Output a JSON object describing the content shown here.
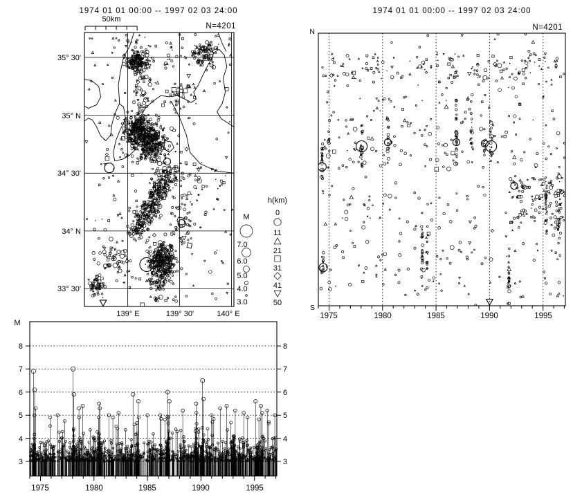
{
  "map_panel": {
    "title": "1974 01 01 00:00 -- 1997 02 03 24:00",
    "count_label": "N=4201",
    "scalebar_label": "50km",
    "lat_labels": [
      "35° 30'",
      "35° N",
      "34° 30'",
      "34° N",
      "33° 30'"
    ],
    "lon_labels": [
      "139° E",
      "139° 30'",
      "140° E"
    ]
  },
  "legend": {
    "magnitude_header": "M",
    "magnitude_entries": [
      {
        "label": "7.0",
        "r": 9
      },
      {
        "label": "6.0",
        "r": 6.5
      },
      {
        "label": "5.0",
        "r": 4.5
      },
      {
        "label": "4.0",
        "r": 2.6
      },
      {
        "label": "3.0",
        "r": 1.4
      }
    ],
    "depth_header": "h(km)",
    "depth_labels": [
      "0",
      "11",
      "21",
      "31",
      "41",
      "50"
    ],
    "depth_symbols": [
      "circle",
      "triangle",
      "square",
      "diamond",
      "triangle-down"
    ]
  },
  "spacetime_panel": {
    "title": "1974 01 01 00:00 -- 1997 02 03 24:00",
    "count_label": "N=4201",
    "north_label": "N",
    "south_label": "S",
    "year_labels": [
      "1975",
      "1980",
      "1985",
      "1990",
      "1995"
    ]
  },
  "mt_panel": {
    "axis_label": "M",
    "mag_labels": [
      "8",
      "7",
      "6",
      "5",
      "4",
      "3"
    ],
    "year_labels": [
      "1975",
      "1980",
      "1985",
      "1990",
      "1995"
    ]
  },
  "colors": {
    "ink": "#000000",
    "paper": "#ffffff"
  },
  "chart_data": [
    {
      "name": "epicenter_map",
      "type": "scatter",
      "title": "1974 01 01 00:00 -- 1997 02 03 24:00",
      "n_events": 4201,
      "scale_km": 50,
      "lon_range": [
        138.583,
        140.023
      ],
      "lat_range": [
        33.348,
        35.715
      ],
      "lon_gridlines": [
        139.0,
        139.5,
        140.0
      ],
      "lat_gridlines": [
        35.5,
        35.0,
        34.5,
        34.0,
        33.5
      ],
      "clusters": [
        {
          "lat": 35.47,
          "lon": 139.085,
          "sd_lat": 0.045,
          "sd_lon": 0.042,
          "n": 150,
          "sym": "default"
        },
        {
          "lat": 35.26,
          "lon": 139.14,
          "sd_lat": 0.12,
          "sd_lon": 0.05,
          "n": 45,
          "sym": "default"
        },
        {
          "lat": 34.88,
          "lon": 139.11,
          "sd_lat": 0.07,
          "sd_lon": 0.065,
          "n": 260,
          "sym": "default"
        },
        {
          "lat": 34.76,
          "lon": 139.22,
          "sd_lat": 0.08,
          "sd_lon": 0.08,
          "n": 320,
          "sym": "default"
        },
        {
          "lat": 33.74,
          "lon": 139.33,
          "sd_lat": 0.075,
          "sd_lon": 0.07,
          "n": 300,
          "sym": "default"
        },
        {
          "lat": 33.57,
          "lon": 139.3,
          "sd_lat": 0.05,
          "sd_lon": 0.06,
          "n": 55,
          "sym": "default"
        },
        {
          "lat": 33.76,
          "lon": 138.85,
          "sd_lat": 0.07,
          "sd_lon": 0.08,
          "n": 55,
          "sym": "default"
        },
        {
          "lat": 33.52,
          "lon": 138.7,
          "sd_lat": 0.04,
          "sd_lon": 0.04,
          "n": 45,
          "sym": "default"
        },
        {
          "lat": 35.52,
          "lon": 139.73,
          "sd_lat": 0.05,
          "sd_lon": 0.06,
          "n": 75,
          "sym": "mixed"
        },
        {
          "lat": 35.18,
          "lon": 139.47,
          "sd_lat": 0.07,
          "sd_lon": 0.1,
          "n": 35,
          "sym": "deep"
        },
        {
          "lat": 34.42,
          "lon": 139.62,
          "sd_lat": 0.1,
          "sd_lon": 0.1,
          "n": 30,
          "sym": "mixed"
        },
        {
          "lat": 34.05,
          "lon": 139.55,
          "sd_lat": 0.12,
          "sd_lon": 0.08,
          "n": 40,
          "sym": "default"
        },
        {
          "lat": 33.42,
          "lon": 139.36,
          "sd_lat": 0.03,
          "sd_lon": 0.08,
          "n": 12,
          "sym": "default"
        }
      ],
      "band_clusters": [
        {
          "lat1": 34.52,
          "lon1": 139.42,
          "lat2": 33.97,
          "lon2": 139.06,
          "jitter": 0.045,
          "n": 340,
          "sym": "default"
        }
      ],
      "uniform_fields": [
        {
          "lat_min": 35.4,
          "lat_max": 35.7,
          "lon_min": 138.85,
          "lon_max": 140.01,
          "n": 65,
          "sym": "mixed"
        },
        {
          "lat_min": 33.36,
          "lat_max": 35.7,
          "lon_min": 138.6,
          "lon_max": 140.01,
          "n": 190,
          "sym": "mixed"
        }
      ],
      "major_events": [
        {
          "lat": 34.545,
          "lon": 138.823,
          "r": 7,
          "symbol": "circle"
        },
        {
          "lat": 33.71,
          "lon": 139.183,
          "r": 10,
          "symbol": "circle"
        },
        {
          "lat": 34.065,
          "lon": 139.52,
          "r": 5.5,
          "symbol": "circle"
        },
        {
          "lat": 33.38,
          "lon": 138.763,
          "r": 5,
          "symbol": "triangle-down"
        },
        {
          "lat": 34.93,
          "lon": 139.1,
          "r": 5,
          "symbol": "circle"
        },
        {
          "lat": 34.6,
          "lon": 139.38,
          "r": 5,
          "symbol": "circle"
        }
      ],
      "coastlines": [
        [
          [
            138.583,
            34.95
          ],
          [
            138.62,
            34.975
          ],
          [
            138.66,
            34.96
          ],
          [
            138.7,
            34.9
          ],
          [
            138.74,
            34.82
          ],
          [
            138.79,
            34.78
          ],
          [
            138.835,
            34.83
          ],
          [
            138.85,
            34.93
          ],
          [
            138.88,
            35.02
          ],
          [
            138.92,
            35.1
          ],
          [
            138.96,
            35.07
          ],
          [
            138.98,
            34.97
          ],
          [
            138.93,
            34.88
          ],
          [
            138.885,
            34.78
          ],
          [
            138.86,
            34.67
          ],
          [
            138.875,
            34.605
          ],
          [
            138.95,
            34.62
          ],
          [
            139.02,
            34.655
          ],
          [
            139.08,
            34.71
          ],
          [
            139.12,
            34.78
          ],
          [
            139.135,
            34.86
          ],
          [
            139.1,
            34.93
          ],
          [
            139.13,
            35.0
          ],
          [
            139.17,
            35.06
          ],
          [
            139.24,
            35.12
          ],
          [
            139.32,
            35.17
          ],
          [
            139.4,
            35.16
          ],
          [
            139.48,
            35.17
          ],
          [
            139.55,
            35.14
          ],
          [
            139.61,
            35.11
          ],
          [
            139.66,
            35.14
          ],
          [
            139.635,
            35.2
          ],
          [
            139.68,
            35.26
          ],
          [
            139.715,
            35.33
          ],
          [
            139.76,
            35.41
          ],
          [
            139.8,
            35.48
          ],
          [
            139.83,
            35.54
          ],
          [
            139.88,
            35.57
          ],
          [
            139.93,
            35.52
          ],
          [
            139.955,
            35.42
          ],
          [
            139.92,
            35.32
          ],
          [
            139.94,
            35.2
          ],
          [
            139.91,
            35.1
          ],
          [
            139.86,
            35.03
          ],
          [
            139.9,
            34.97
          ],
          [
            139.97,
            34.93
          ],
          [
            140.02,
            34.9
          ]
        ],
        [
          [
            139.06,
            35.715
          ],
          [
            139.02,
            35.6
          ],
          [
            138.96,
            35.5
          ],
          [
            138.93,
            35.38
          ],
          [
            138.91,
            35.26
          ],
          [
            138.92,
            35.135
          ],
          [
            138.92,
            35.1
          ]
        ],
        [
          [
            138.583,
            35.31
          ],
          [
            138.65,
            35.3
          ],
          [
            138.72,
            35.25
          ],
          [
            138.74,
            35.16
          ],
          [
            138.7,
            35.09
          ],
          [
            138.62,
            35.06
          ],
          [
            138.583,
            35.08
          ]
        ],
        [
          [
            139.87,
            35.715
          ],
          [
            139.91,
            35.62
          ],
          [
            139.95,
            35.55
          ]
        ],
        [
          [
            139.42,
            35.12
          ],
          [
            139.5,
            34.98
          ],
          [
            139.565,
            34.83
          ],
          [
            139.6,
            34.68
          ],
          [
            139.7,
            34.58
          ],
          [
            139.85,
            34.52
          ],
          [
            140.02,
            34.5
          ]
        ]
      ],
      "islands": [
        [
          [
            139.355,
            34.78
          ],
          [
            139.42,
            34.77
          ],
          [
            139.445,
            34.72
          ],
          [
            139.4,
            34.68
          ],
          [
            139.35,
            34.71
          ]
        ],
        [
          [
            139.27,
            34.53
          ],
          [
            139.29,
            34.53
          ],
          [
            139.29,
            34.51
          ],
          [
            139.27,
            34.51
          ]
        ],
        [
          [
            139.25,
            34.43
          ],
          [
            139.27,
            34.41
          ],
          [
            139.265,
            34.34
          ],
          [
            139.245,
            34.36
          ]
        ],
        [
          [
            139.14,
            34.23
          ],
          [
            139.17,
            34.22
          ],
          [
            139.16,
            34.18
          ],
          [
            139.13,
            34.19
          ]
        ],
        [
          [
            139.49,
            34.12
          ],
          [
            139.54,
            34.11
          ],
          [
            139.55,
            34.06
          ],
          [
            139.5,
            34.05
          ],
          [
            139.475,
            34.09
          ]
        ],
        [
          [
            139.58,
            33.9
          ],
          [
            139.62,
            33.89
          ],
          [
            139.61,
            33.85
          ],
          [
            139.57,
            33.86
          ]
        ]
      ]
    },
    {
      "name": "space_time",
      "type": "scatter",
      "title": "1974 01 01 00:00 -- 1997 02 03 24:00",
      "n_events": 4201,
      "x_range": [
        1974.0,
        1997.09
      ],
      "x_major_ticks": [
        1975,
        1980,
        1985,
        1990,
        1995
      ],
      "x_minor_step": 1,
      "y_axis_labels": [
        "N",
        "S"
      ],
      "bands": [
        {
          "ns": [
            0.07,
            0.165
          ],
          "n": 130,
          "sym": "mixed"
        },
        {
          "ns": [
            0.165,
            0.29
          ],
          "n": 50,
          "sym": "mixed"
        },
        {
          "ns": [
            0.3,
            0.5
          ],
          "n": 115,
          "sym": "default"
        },
        {
          "ns": [
            0.52,
            0.75
          ],
          "n": 75,
          "sym": "default"
        },
        {
          "ns": [
            0.52,
            0.7
          ],
          "n": 85,
          "years": [
            1992.0,
            1997.05
          ],
          "sym": "default"
        },
        {
          "ns": [
            0.76,
            0.97
          ],
          "n": 75,
          "sym": "default"
        },
        {
          "ns": [
            0.0,
            1.0
          ],
          "n": 75,
          "sym": "mixed"
        }
      ],
      "bursts": [
        {
          "year": 1974.35,
          "ns": 0.47,
          "sd": 0.05,
          "n": 22
        },
        {
          "year": 1974.4,
          "ns": 0.85,
          "sd": 0.035,
          "n": 12
        },
        {
          "year": 1975.0,
          "ns": 0.4,
          "sd": 0.05,
          "n": 10
        },
        {
          "year": 1978.05,
          "ns": 0.42,
          "sd": 0.04,
          "n": 18
        },
        {
          "year": 1980.5,
          "ns": 0.38,
          "sd": 0.05,
          "n": 16
        },
        {
          "year": 1983.7,
          "ns": 0.81,
          "sd": 0.06,
          "n": 26
        },
        {
          "year": 1984.15,
          "ns": 0.79,
          "sd": 0.05,
          "n": 14
        },
        {
          "year": 1986.9,
          "ns": 0.38,
          "sd": 0.09,
          "n": 32
        },
        {
          "year": 1988.3,
          "ns": 0.34,
          "sd": 0.05,
          "n": 14
        },
        {
          "year": 1989.55,
          "ns": 0.41,
          "sd": 0.04,
          "n": 12
        },
        {
          "year": 1990.15,
          "ns": 0.41,
          "sd": 0.05,
          "n": 16
        },
        {
          "year": 1991.8,
          "ns": 0.88,
          "sd": 0.05,
          "n": 22
        },
        {
          "year": 1995.3,
          "ns": 0.62,
          "sd": 0.07,
          "n": 26
        },
        {
          "year": 1996.5,
          "ns": 0.63,
          "sd": 0.06,
          "n": 20
        }
      ],
      "major_events": [
        {
          "year": 1974.35,
          "ns": 0.49,
          "r": 6,
          "symbol": "circle"
        },
        {
          "year": 1974.45,
          "ns": 0.86,
          "r": 6,
          "symbol": "circle"
        },
        {
          "year": 1978.05,
          "ns": 0.415,
          "r": 8,
          "symbol": "circle"
        },
        {
          "year": 1980.5,
          "ns": 0.4,
          "r": 5,
          "symbol": "circle"
        },
        {
          "year": 1986.9,
          "ns": 0.4,
          "r": 5,
          "symbol": "circle"
        },
        {
          "year": 1989.55,
          "ns": 0.405,
          "r": 5,
          "symbol": "circle"
        },
        {
          "year": 1990.15,
          "ns": 0.415,
          "r": 8,
          "symbol": "circle"
        },
        {
          "year": 1990.0,
          "ns": 0.985,
          "r": 5,
          "symbol": "triangle-down"
        },
        {
          "year": 1992.3,
          "ns": 0.56,
          "r": 5,
          "symbol": "circle"
        }
      ]
    },
    {
      "name": "magnitude_time",
      "type": "stem",
      "x_range": [
        1974.0,
        1997.09
      ],
      "y_range": [
        2.37,
        9.05
      ],
      "y_ticks": [
        8,
        7,
        6,
        5,
        4,
        3
      ],
      "x_major_ticks": [
        1975,
        1980,
        1985,
        1990,
        1995
      ],
      "x_minor_step": 1,
      "background": {
        "n": 920,
        "m_min": 3.0,
        "m_mean_excess": 0.33,
        "m_cap": 4.9
      },
      "burst_windows": [
        [
          1974.35,
          0.25
        ],
        [
          1978.05,
          0.18
        ],
        [
          1980.5,
          0.18
        ],
        [
          1986.9,
          0.3
        ],
        [
          1989.55,
          0.18
        ],
        [
          1990.15,
          0.18
        ],
        [
          1993.0,
          0.5
        ],
        [
          1995.4,
          0.7
        ]
      ],
      "major_events": [
        [
          1974.35,
          6.9
        ],
        [
          1974.45,
          6.1
        ],
        [
          1974.55,
          5.3
        ],
        [
          1975.9,
          4.9
        ],
        [
          1976.6,
          5.0
        ],
        [
          1978.05,
          7.0
        ],
        [
          1978.12,
          5.9
        ],
        [
          1978.6,
          5.3
        ],
        [
          1978.95,
          5.4
        ],
        [
          1980.48,
          5.5
        ],
        [
          1980.55,
          5.3
        ],
        [
          1981.4,
          5.0
        ],
        [
          1982.3,
          5.1
        ],
        [
          1983.65,
          5.9
        ],
        [
          1984.15,
          5.6
        ],
        [
          1985.0,
          5.0
        ],
        [
          1986.2,
          5.0
        ],
        [
          1986.88,
          6.0
        ],
        [
          1987.05,
          5.6
        ],
        [
          1988.3,
          5.2
        ],
        [
          1989.55,
          5.5
        ],
        [
          1990.15,
          6.5
        ],
        [
          1990.25,
          5.7
        ],
        [
          1991.0,
          5.0
        ],
        [
          1991.8,
          5.3
        ],
        [
          1992.4,
          5.4
        ],
        [
          1993.2,
          5.2
        ],
        [
          1994.0,
          5.1
        ],
        [
          1995.1,
          5.6
        ],
        [
          1995.6,
          5.4
        ],
        [
          1996.2,
          5.2
        ],
        [
          1996.9,
          5.0
        ]
      ]
    }
  ]
}
